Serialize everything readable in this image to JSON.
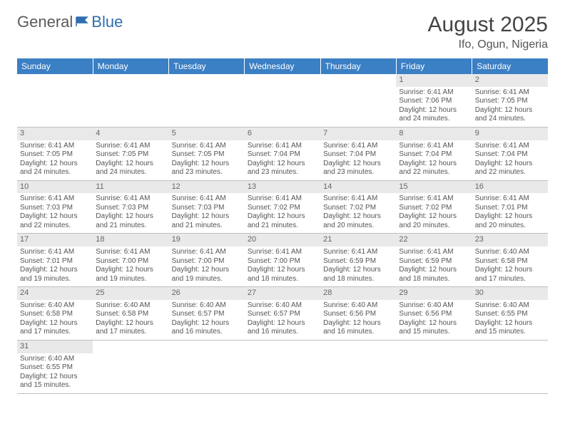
{
  "logo": {
    "text1": "General",
    "text2": "Blue"
  },
  "title": "August 2025",
  "location": "Ifo, Ogun, Nigeria",
  "colors": {
    "header_bg": "#3b7fc4",
    "header_text": "#ffffff",
    "daynum_bg": "#e9e9e9",
    "border": "#bfbfbf",
    "text": "#555555"
  },
  "weekdays": [
    "Sunday",
    "Monday",
    "Tuesday",
    "Wednesday",
    "Thursday",
    "Friday",
    "Saturday"
  ],
  "weeks": [
    [
      null,
      null,
      null,
      null,
      null,
      {
        "n": "1",
        "sr": "Sunrise: 6:41 AM",
        "ss": "Sunset: 7:06 PM",
        "dl": "Daylight: 12 hours and 24 minutes."
      },
      {
        "n": "2",
        "sr": "Sunrise: 6:41 AM",
        "ss": "Sunset: 7:05 PM",
        "dl": "Daylight: 12 hours and 24 minutes."
      }
    ],
    [
      {
        "n": "3",
        "sr": "Sunrise: 6:41 AM",
        "ss": "Sunset: 7:05 PM",
        "dl": "Daylight: 12 hours and 24 minutes."
      },
      {
        "n": "4",
        "sr": "Sunrise: 6:41 AM",
        "ss": "Sunset: 7:05 PM",
        "dl": "Daylight: 12 hours and 24 minutes."
      },
      {
        "n": "5",
        "sr": "Sunrise: 6:41 AM",
        "ss": "Sunset: 7:05 PM",
        "dl": "Daylight: 12 hours and 23 minutes."
      },
      {
        "n": "6",
        "sr": "Sunrise: 6:41 AM",
        "ss": "Sunset: 7:04 PM",
        "dl": "Daylight: 12 hours and 23 minutes."
      },
      {
        "n": "7",
        "sr": "Sunrise: 6:41 AM",
        "ss": "Sunset: 7:04 PM",
        "dl": "Daylight: 12 hours and 23 minutes."
      },
      {
        "n": "8",
        "sr": "Sunrise: 6:41 AM",
        "ss": "Sunset: 7:04 PM",
        "dl": "Daylight: 12 hours and 22 minutes."
      },
      {
        "n": "9",
        "sr": "Sunrise: 6:41 AM",
        "ss": "Sunset: 7:04 PM",
        "dl": "Daylight: 12 hours and 22 minutes."
      }
    ],
    [
      {
        "n": "10",
        "sr": "Sunrise: 6:41 AM",
        "ss": "Sunset: 7:03 PM",
        "dl": "Daylight: 12 hours and 22 minutes."
      },
      {
        "n": "11",
        "sr": "Sunrise: 6:41 AM",
        "ss": "Sunset: 7:03 PM",
        "dl": "Daylight: 12 hours and 21 minutes."
      },
      {
        "n": "12",
        "sr": "Sunrise: 6:41 AM",
        "ss": "Sunset: 7:03 PM",
        "dl": "Daylight: 12 hours and 21 minutes."
      },
      {
        "n": "13",
        "sr": "Sunrise: 6:41 AM",
        "ss": "Sunset: 7:02 PM",
        "dl": "Daylight: 12 hours and 21 minutes."
      },
      {
        "n": "14",
        "sr": "Sunrise: 6:41 AM",
        "ss": "Sunset: 7:02 PM",
        "dl": "Daylight: 12 hours and 20 minutes."
      },
      {
        "n": "15",
        "sr": "Sunrise: 6:41 AM",
        "ss": "Sunset: 7:02 PM",
        "dl": "Daylight: 12 hours and 20 minutes."
      },
      {
        "n": "16",
        "sr": "Sunrise: 6:41 AM",
        "ss": "Sunset: 7:01 PM",
        "dl": "Daylight: 12 hours and 20 minutes."
      }
    ],
    [
      {
        "n": "17",
        "sr": "Sunrise: 6:41 AM",
        "ss": "Sunset: 7:01 PM",
        "dl": "Daylight: 12 hours and 19 minutes."
      },
      {
        "n": "18",
        "sr": "Sunrise: 6:41 AM",
        "ss": "Sunset: 7:00 PM",
        "dl": "Daylight: 12 hours and 19 minutes."
      },
      {
        "n": "19",
        "sr": "Sunrise: 6:41 AM",
        "ss": "Sunset: 7:00 PM",
        "dl": "Daylight: 12 hours and 19 minutes."
      },
      {
        "n": "20",
        "sr": "Sunrise: 6:41 AM",
        "ss": "Sunset: 7:00 PM",
        "dl": "Daylight: 12 hours and 18 minutes."
      },
      {
        "n": "21",
        "sr": "Sunrise: 6:41 AM",
        "ss": "Sunset: 6:59 PM",
        "dl": "Daylight: 12 hours and 18 minutes."
      },
      {
        "n": "22",
        "sr": "Sunrise: 6:41 AM",
        "ss": "Sunset: 6:59 PM",
        "dl": "Daylight: 12 hours and 18 minutes."
      },
      {
        "n": "23",
        "sr": "Sunrise: 6:40 AM",
        "ss": "Sunset: 6:58 PM",
        "dl": "Daylight: 12 hours and 17 minutes."
      }
    ],
    [
      {
        "n": "24",
        "sr": "Sunrise: 6:40 AM",
        "ss": "Sunset: 6:58 PM",
        "dl": "Daylight: 12 hours and 17 minutes."
      },
      {
        "n": "25",
        "sr": "Sunrise: 6:40 AM",
        "ss": "Sunset: 6:58 PM",
        "dl": "Daylight: 12 hours and 17 minutes."
      },
      {
        "n": "26",
        "sr": "Sunrise: 6:40 AM",
        "ss": "Sunset: 6:57 PM",
        "dl": "Daylight: 12 hours and 16 minutes."
      },
      {
        "n": "27",
        "sr": "Sunrise: 6:40 AM",
        "ss": "Sunset: 6:57 PM",
        "dl": "Daylight: 12 hours and 16 minutes."
      },
      {
        "n": "28",
        "sr": "Sunrise: 6:40 AM",
        "ss": "Sunset: 6:56 PM",
        "dl": "Daylight: 12 hours and 16 minutes."
      },
      {
        "n": "29",
        "sr": "Sunrise: 6:40 AM",
        "ss": "Sunset: 6:56 PM",
        "dl": "Daylight: 12 hours and 15 minutes."
      },
      {
        "n": "30",
        "sr": "Sunrise: 6:40 AM",
        "ss": "Sunset: 6:55 PM",
        "dl": "Daylight: 12 hours and 15 minutes."
      }
    ],
    [
      {
        "n": "31",
        "sr": "Sunrise: 6:40 AM",
        "ss": "Sunset: 6:55 PM",
        "dl": "Daylight: 12 hours and 15 minutes."
      },
      null,
      null,
      null,
      null,
      null,
      null
    ]
  ]
}
